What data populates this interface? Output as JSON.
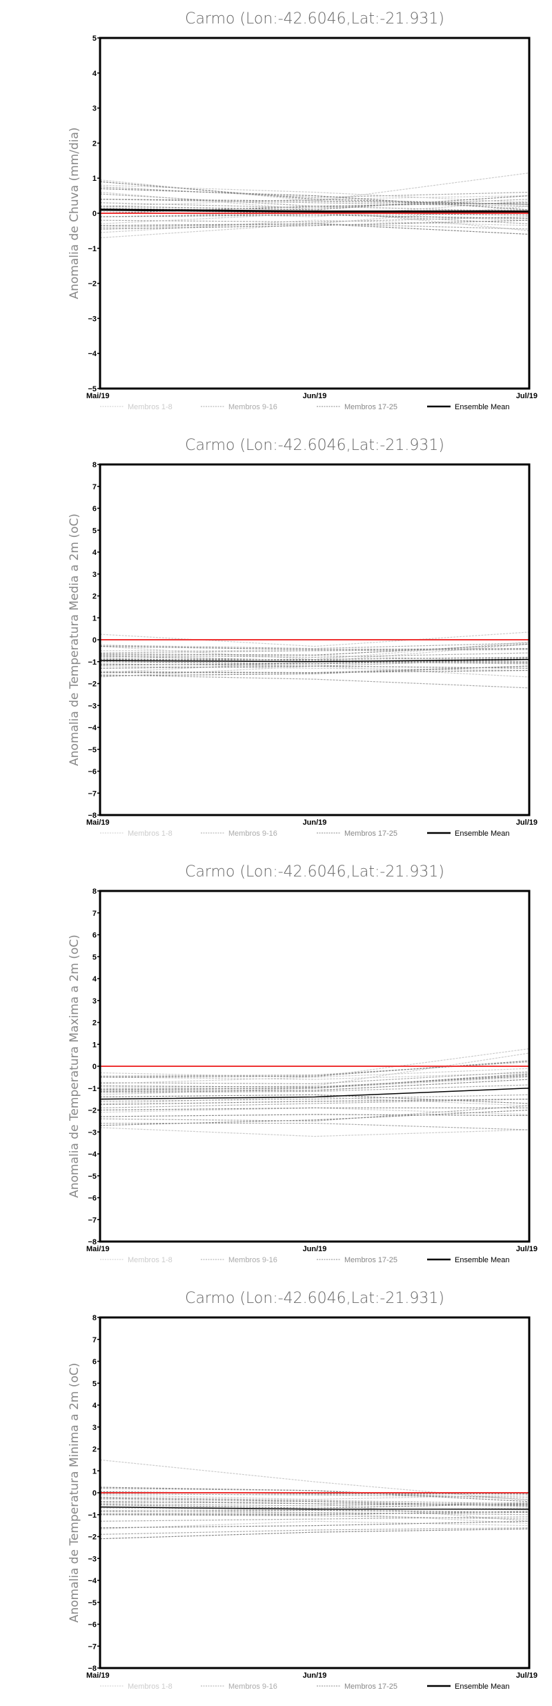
{
  "chart_data": [
    {
      "type": "line",
      "title": "Carmo (Lon:-42.6046,Lat:-21.931)",
      "ylabel": "Anomalia de Chuva (mm/dia)",
      "xlabel": "",
      "categories": [
        "Mai/19",
        "Jun/19",
        "Jul/19"
      ],
      "ylim": [
        -5,
        5
      ],
      "yticks": [
        -5,
        -4,
        -3,
        -2,
        -1,
        0,
        1,
        2,
        3,
        4,
        5
      ],
      "reference_line": {
        "value": 0,
        "color": "#ee3333"
      },
      "legend": [
        "Membros 1-8",
        "Membros 9-16",
        "Membros 17-25",
        "Ensemble Mean"
      ],
      "members": [
        [
          0.95,
          0.35,
          1.15
        ],
        [
          0.8,
          0.6,
          0.3
        ],
        [
          0.6,
          0.1,
          -0.5
        ],
        [
          -0.7,
          -0.3,
          0.2
        ],
        [
          -0.55,
          -0.2,
          -0.35
        ],
        [
          0.2,
          0.4,
          0.5
        ],
        [
          -0.3,
          0,
          -0.2
        ],
        [
          0.05,
          -0.1,
          0.35
        ],
        [
          0.75,
          0.45,
          0.6
        ],
        [
          0.4,
          0.3,
          0.2
        ],
        [
          -0.4,
          -0.3,
          -0.45
        ],
        [
          0.15,
          0.05,
          0.1
        ],
        [
          -0.2,
          -0.25,
          -0.1
        ],
        [
          0.3,
          0.15,
          0.4
        ],
        [
          -0.1,
          0,
          -0.3
        ],
        [
          0.55,
          0.2,
          0.05
        ],
        [
          0.9,
          0.4,
          0.25
        ],
        [
          0.4,
          0.35,
          0.25
        ],
        [
          -0.35,
          -0.3,
          -0.6
        ],
        [
          0.2,
          0.1,
          0.5
        ],
        [
          -0.1,
          -0.05,
          -0.15
        ],
        [
          0,
          0.2,
          0.3
        ],
        [
          -0.45,
          -0.35,
          -0.2
        ],
        [
          0.1,
          0,
          -0.05
        ],
        [
          0.7,
          0.5,
          0.1
        ]
      ],
      "ensemble_mean": [
        0.1,
        0.05,
        0.05
      ],
      "mean_width": 3
    },
    {
      "type": "line",
      "title": "Carmo (Lon:-42.6046,Lat:-21.931)",
      "ylabel": "Anomalia de Temperatura Media a 2m (oC)",
      "xlabel": "",
      "categories": [
        "Mai/19",
        "Jun/19",
        "Jul/19"
      ],
      "ylim": [
        -8,
        8
      ],
      "yticks": [
        -8,
        -7,
        -6,
        -5,
        -4,
        -3,
        -2,
        -1,
        0,
        1,
        2,
        3,
        4,
        5,
        6,
        7,
        8
      ],
      "reference_line": {
        "value": 0,
        "color": "#ee3333"
      },
      "legend": [
        "Membros 1-8",
        "Membros 9-16",
        "Membros 17-25",
        "Ensemble Mean"
      ],
      "members": [
        [
          0.25,
          -0.3,
          0.35
        ],
        [
          -0.5,
          -0.5,
          -0.4
        ],
        [
          -1.7,
          -1.2,
          -1.7
        ],
        [
          -1.0,
          -1.1,
          -0.8
        ],
        [
          -0.3,
          -0.9,
          -0.1
        ],
        [
          -1.2,
          -1.3,
          -1.4
        ],
        [
          -0.8,
          -0.7,
          -1.0
        ],
        [
          -1.5,
          -1.0,
          -0.2
        ],
        [
          -0.25,
          -0.4,
          -0.15
        ],
        [
          -0.7,
          -0.8,
          -0.6
        ],
        [
          -1.45,
          -1.5,
          -1.2
        ],
        [
          -0.9,
          -1.0,
          -1.0
        ],
        [
          -1.1,
          -1.2,
          -0.9
        ],
        [
          -0.6,
          -0.5,
          -0.45
        ],
        [
          -1.6,
          -1.8,
          -2.2
        ],
        [
          -0.85,
          -1.0,
          -1.1
        ],
        [
          -0.65,
          -0.7,
          -0.2
        ],
        [
          -1.0,
          -1.1,
          -0.9
        ],
        [
          -1.3,
          -1.2,
          -1.3
        ],
        [
          -0.75,
          -0.95,
          -1.05
        ],
        [
          -1.5,
          -1.5,
          -1.4
        ],
        [
          -0.9,
          -0.9,
          -0.8
        ],
        [
          -1.15,
          -1.1,
          -0.85
        ],
        [
          -0.3,
          -0.45,
          -0.4
        ],
        [
          -1.65,
          -1.55,
          -1.2
        ]
      ],
      "ensemble_mean": [
        -0.95,
        -1.0,
        -0.9
      ],
      "mean_width": 1.5
    },
    {
      "type": "line",
      "title": "Carmo (Lon:-42.6046,Lat:-21.931)",
      "ylabel": "Anomalia de Temperatura Maxima a 2m (oC)",
      "xlabel": "",
      "categories": [
        "Mai/19",
        "Jun/19",
        "Jul/19"
      ],
      "ylim": [
        -8,
        8
      ],
      "yticks": [
        -8,
        -7,
        -6,
        -5,
        -4,
        -3,
        -2,
        -1,
        0,
        1,
        2,
        3,
        4,
        5,
        6,
        7,
        8
      ],
      "reference_line": {
        "value": 0,
        "color": "#ee3333"
      },
      "legend": [
        "Membros 1-8",
        "Membros 9-16",
        "Membros 17-25",
        "Ensemble Mean"
      ],
      "members": [
        [
          -0.3,
          -0.5,
          0.8
        ],
        [
          -1.0,
          -0.9,
          0.6
        ],
        [
          -2.1,
          -1.9,
          -2.2
        ],
        [
          -0.5,
          -0.6,
          -0.3
        ],
        [
          -2.8,
          -3.2,
          -2.9
        ],
        [
          -1.3,
          -1.0,
          -0.5
        ],
        [
          -1.7,
          -1.4,
          -1.8
        ],
        [
          -0.8,
          -0.5,
          -0.1
        ],
        [
          -0.45,
          -0.4,
          0.2
        ],
        [
          -1.1,
          -1.0,
          -0.4
        ],
        [
          -2.4,
          -2.5,
          -1.8
        ],
        [
          -1.9,
          -1.7,
          -1.5
        ],
        [
          -0.75,
          -0.8,
          -0.25
        ],
        [
          -2.6,
          -2.6,
          -2.9
        ],
        [
          -1.2,
          -1.15,
          -0.85
        ],
        [
          -1.6,
          -1.5,
          -1.3
        ],
        [
          -0.5,
          -0.45,
          0.25
        ],
        [
          -1.15,
          -1.1,
          -0.6
        ],
        [
          -2.0,
          -1.9,
          -1.9
        ],
        [
          -1.4,
          -1.3,
          -1.7
        ],
        [
          -2.3,
          -2.2,
          -2.25
        ],
        [
          -0.9,
          -0.95,
          -0.45
        ],
        [
          -1.75,
          -1.6,
          -1.5
        ],
        [
          -2.7,
          -2.45,
          -2.0
        ],
        [
          -1.05,
          -1.0,
          -0.35
        ]
      ],
      "ensemble_mean": [
        -1.5,
        -1.4,
        -1.0
      ],
      "mean_width": 1.5
    },
    {
      "type": "line",
      "title": "Carmo (Lon:-42.6046,Lat:-21.931)",
      "ylabel": "Anomalia de Temperatura Minima a 2m (oC)",
      "xlabel": "",
      "categories": [
        "Mai/19",
        "Jun/19",
        "Jul/19"
      ],
      "ylim": [
        -8,
        8
      ],
      "yticks": [
        -8,
        -7,
        -6,
        -5,
        -4,
        -3,
        -2,
        -1,
        0,
        1,
        2,
        3,
        4,
        5,
        6,
        7,
        8
      ],
      "reference_line": {
        "value": 0,
        "color": "#ee3333"
      },
      "legend": [
        "Membros 1-8",
        "Membros 9-16",
        "Membros 17-25",
        "Ensemble Mean"
      ],
      "members": [
        [
          1.5,
          0.5,
          -0.35
        ],
        [
          -0.1,
          -0.3,
          -0.1
        ],
        [
          -0.7,
          -0.8,
          -0.7
        ],
        [
          -1.65,
          -1.3,
          -1.5
        ],
        [
          -0.3,
          -0.5,
          -1.3
        ],
        [
          -1.0,
          -0.95,
          -0.9
        ],
        [
          -0.8,
          -0.9,
          -1.4
        ],
        [
          -0.45,
          -0.4,
          -0.65
        ],
        [
          0.2,
          0.1,
          -0.3
        ],
        [
          -0.2,
          -0.35,
          -0.5
        ],
        [
          -1.0,
          -1.05,
          -1.2
        ],
        [
          -1.9,
          -1.7,
          -1.6
        ],
        [
          -0.5,
          -0.6,
          -0.45
        ],
        [
          -0.05,
          -0.1,
          -0.2
        ],
        [
          -0.95,
          -0.9,
          -1.0
        ],
        [
          -1.3,
          -1.2,
          -1.1
        ],
        [
          0.25,
          0.1,
          -0.4
        ],
        [
          0.05,
          -0.05,
          -0.05
        ],
        [
          -0.55,
          -0.7,
          -0.5
        ],
        [
          -1.0,
          -1.0,
          -0.85
        ],
        [
          -2.1,
          -1.8,
          -1.65
        ],
        [
          -0.4,
          -0.5,
          -0.55
        ],
        [
          -1.6,
          -1.5,
          -1.3
        ],
        [
          -0.25,
          -0.4,
          -0.6
        ],
        [
          -0.85,
          -0.8,
          -0.9
        ]
      ],
      "ensemble_mean": [
        -0.65,
        -0.75,
        -0.75
      ],
      "mean_width": 1.5
    }
  ],
  "colors": {
    "members_1_8": "#cccccc",
    "members_9_16": "#aaaaaa",
    "members_17_25": "#888888",
    "ensemble_mean": "#000000",
    "reference": "#ee3333"
  }
}
